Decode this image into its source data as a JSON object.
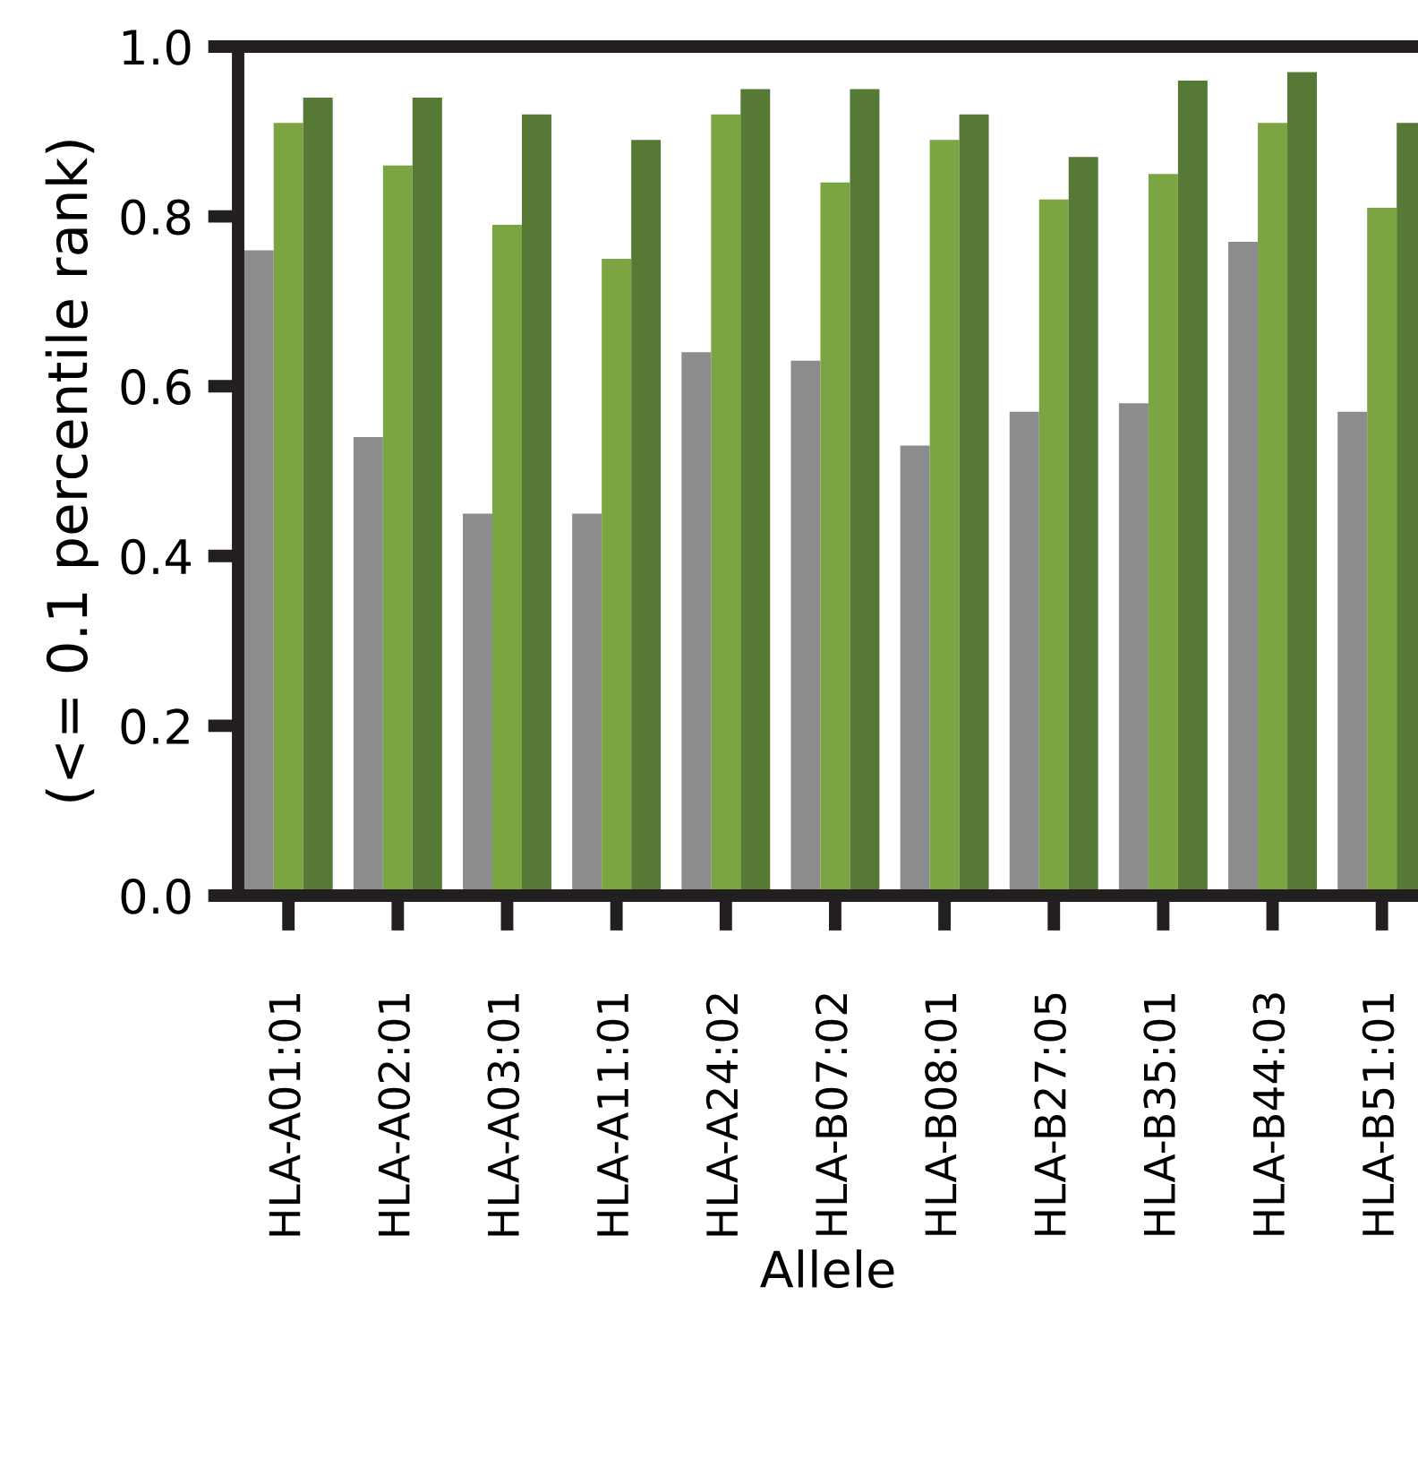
{
  "chart_data": {
    "type": "bar",
    "ylabel": "(<= 0.1 percentile rank)",
    "xlabel": "Allele",
    "categories": [
      "HLA-A01:01",
      "HLA-A02:01",
      "HLA-A03:01",
      "HLA-A11:01",
      "HLA-A24:02",
      "HLA-B07:02",
      "HLA-B08:01",
      "HLA-B27:05",
      "HLA-B35:01",
      "HLA-B44:03",
      "HLA-B51:01"
    ],
    "series": [
      {
        "color": "#8c8c8e",
        "values": [
          0.76,
          0.54,
          0.45,
          0.45,
          0.64,
          0.63,
          0.53,
          0.57,
          0.58,
          0.77,
          0.57
        ]
      },
      {
        "color": "#7ba443",
        "values": [
          0.91,
          0.86,
          0.79,
          0.75,
          0.92,
          0.84,
          0.89,
          0.82,
          0.85,
          0.91,
          0.81
        ]
      },
      {
        "color": "#567a35",
        "values": [
          0.94,
          0.94,
          0.92,
          0.89,
          0.95,
          0.95,
          0.92,
          0.87,
          0.96,
          0.97,
          0.91
        ]
      }
    ],
    "ylim": [
      0,
      1.0
    ],
    "yticks": [
      {
        "value": 0,
        "label": "0.0"
      },
      {
        "value": 0.2,
        "label": "0.2"
      },
      {
        "value": 0.4,
        "label": "0.4"
      },
      {
        "value": 0.6,
        "label": "0.6"
      },
      {
        "value": 0.8,
        "label": "0.8"
      },
      {
        "value": 1.0,
        "label": "1.0"
      }
    ],
    "grid": false
  }
}
